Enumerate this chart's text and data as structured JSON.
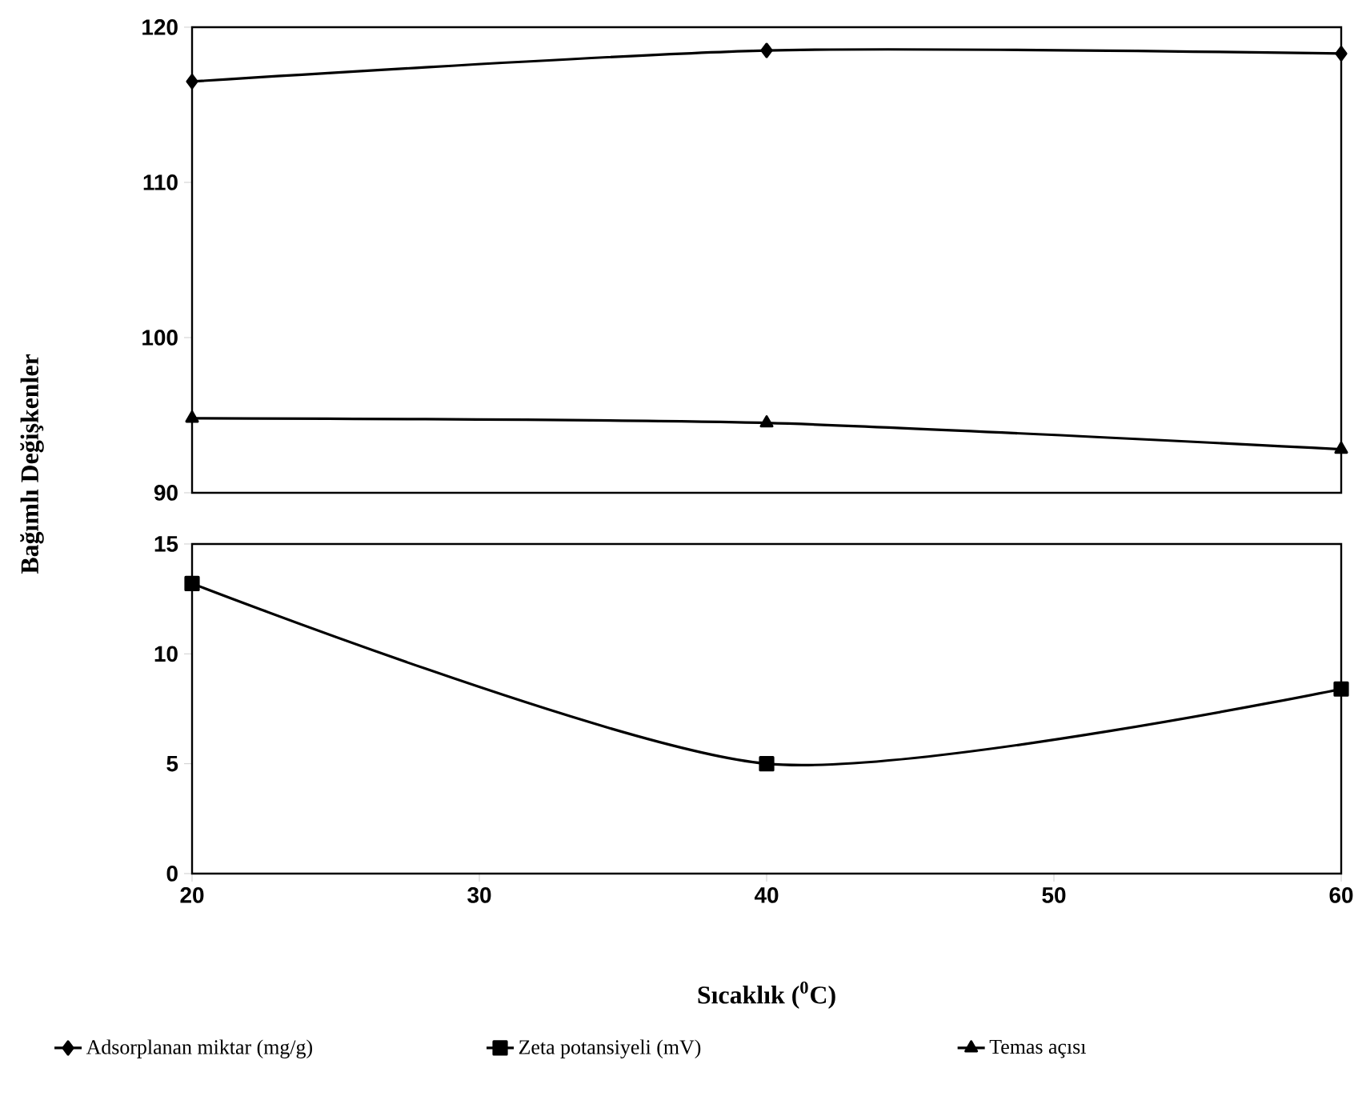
{
  "chart_data": [
    {
      "type": "line",
      "ylabel": "Bağımlı Değişkenler",
      "x": [
        20,
        40,
        60
      ],
      "xlim": [
        20,
        60
      ],
      "ylim": [
        90,
        120
      ],
      "yticks": [
        90,
        100,
        110,
        120
      ],
      "tick_labels": "y",
      "legend": "bottom",
      "series": [
        {
          "name": "Adsorplanan miktar (mg/g)",
          "color": "#000000",
          "marker": "diamond",
          "values": [
            116.5,
            118.5,
            118.3
          ]
        },
        {
          "name": "Temas açısı",
          "color": "#000000",
          "marker": "triangle",
          "values": [
            94.8,
            94.5,
            92.8
          ]
        }
      ]
    },
    {
      "type": "line",
      "xlabel": "Sıcaklık ($^{0}$C)",
      "x": [
        20,
        40,
        60
      ],
      "xlim": [
        20,
        60
      ],
      "xticks": [
        20,
        30,
        40,
        50,
        60
      ],
      "ylim": [
        0,
        15
      ],
      "yticks": [
        0,
        5,
        10,
        15
      ],
      "legend": "bottom",
      "series": [
        {
          "name": "Zeta potansiyeli (mV)",
          "color": "#000000",
          "marker": "square",
          "values": [
            13.2,
            5.0,
            8.4
          ]
        }
      ]
    }
  ]
}
